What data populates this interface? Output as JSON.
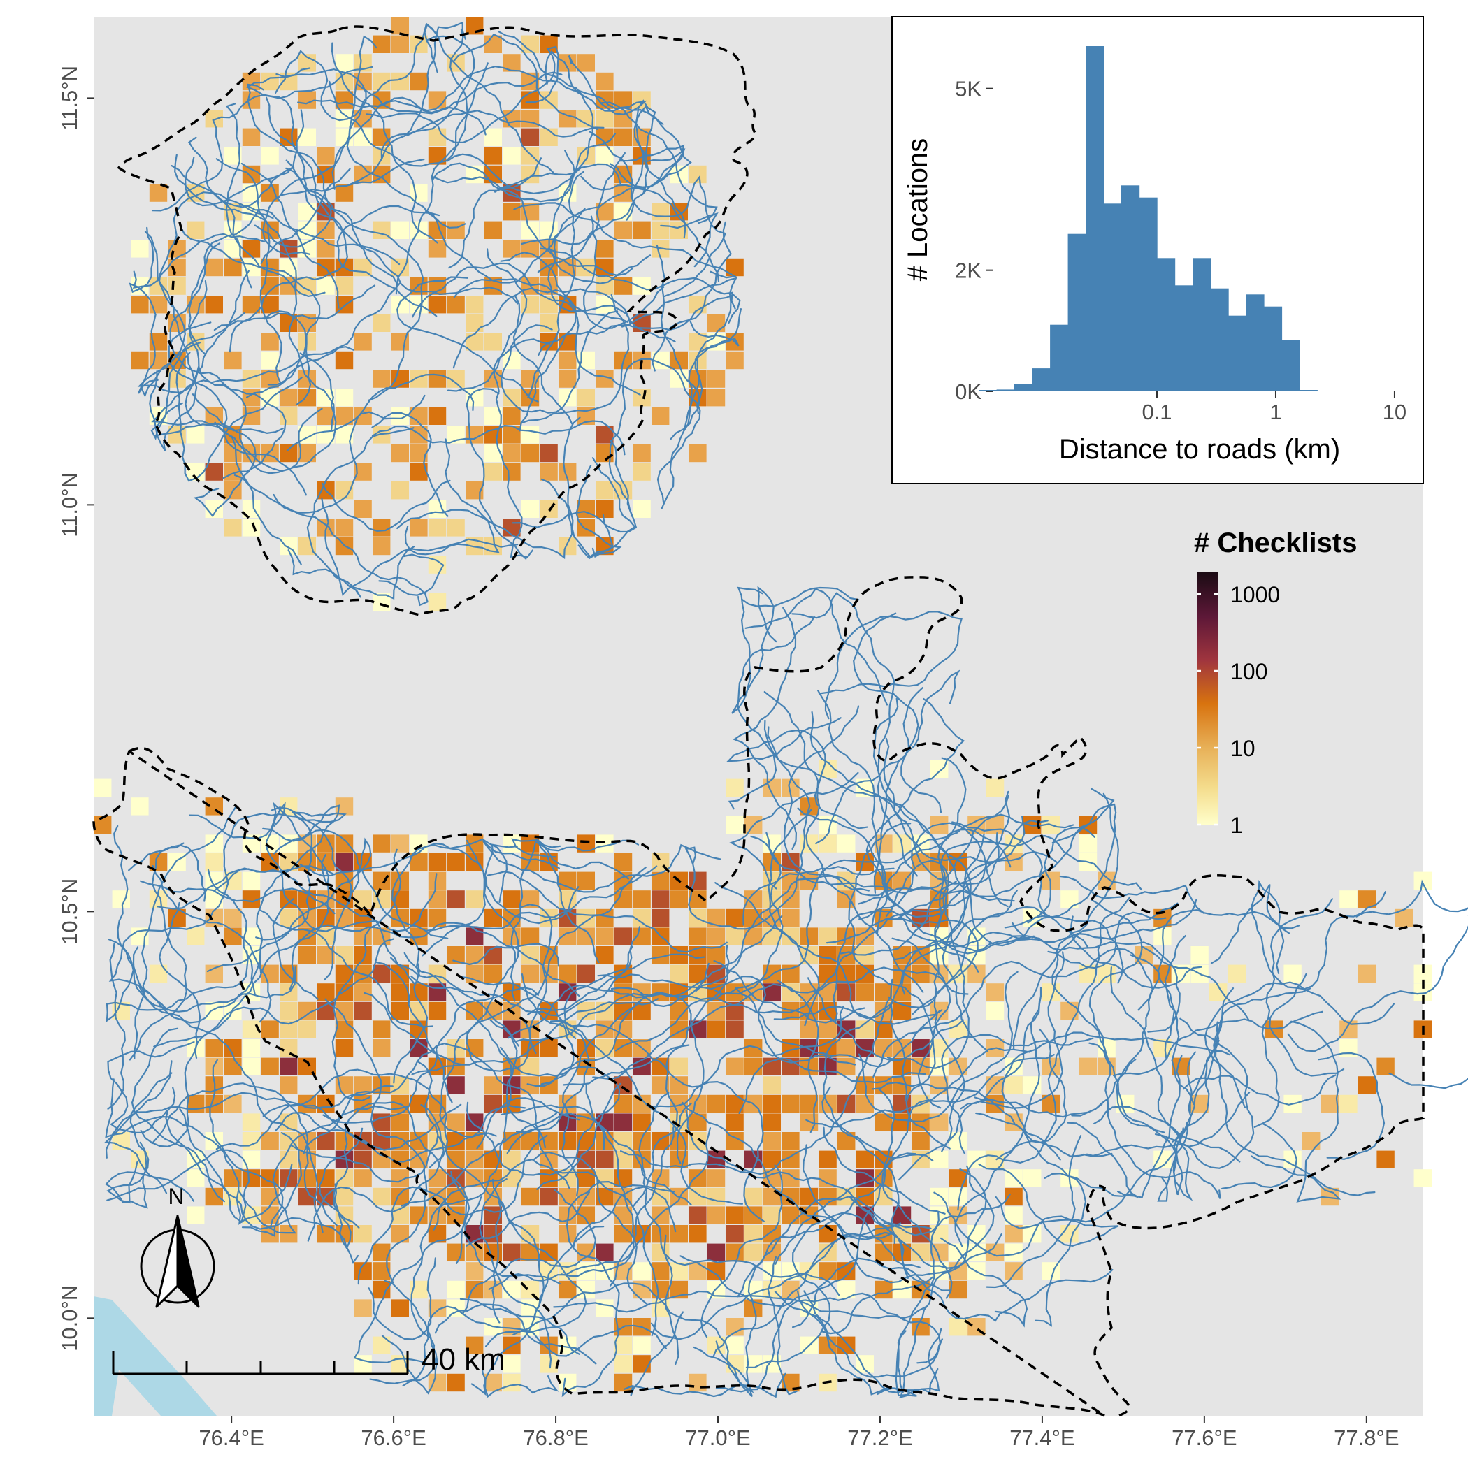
{
  "map": {
    "lat_labels": [
      {
        "value": 11.5,
        "label": "11.5°N"
      },
      {
        "value": 11.0,
        "label": "11.0°N"
      },
      {
        "value": 10.5,
        "label": "10.5°N"
      },
      {
        "value": 10.0,
        "label": "10.0°N"
      }
    ],
    "lon_labels": [
      {
        "value": 76.4,
        "label": "76.4°E"
      },
      {
        "value": 76.6,
        "label": "76.6°E"
      },
      {
        "value": 76.8,
        "label": "76.8°E"
      },
      {
        "value": 77.0,
        "label": "77.0°E"
      },
      {
        "value": 77.2,
        "label": "77.2°E"
      },
      {
        "value": 77.4,
        "label": "77.4°E"
      },
      {
        "value": 77.6,
        "label": "77.6°E"
      },
      {
        "value": 77.8,
        "label": "77.8°E"
      }
    ],
    "lon_range": [
      76.23,
      77.87
    ],
    "lat_range": [
      9.88,
      11.6
    ],
    "background_color": "#e5e5e5",
    "road_color": "#4682b4",
    "water_color": "#add8e6",
    "boundary_style": "black dashed"
  },
  "legend": {
    "title": "# Checklists",
    "labels": [
      "1000",
      "100",
      "10",
      "1"
    ],
    "colors": [
      "#1a0b13",
      "#6e1a3a",
      "#a33a3a",
      "#d8730f",
      "#e8b25a",
      "#f4dc8c",
      "#ffffcc"
    ],
    "scale": "log10"
  },
  "scale_bar": {
    "label": "40 km"
  },
  "north_arrow": {
    "label": "N"
  },
  "chart_data": {
    "type": "bar",
    "title": "",
    "xlabel": "Distance to roads (km)",
    "ylabel": "# Locations",
    "x_scale": "log10",
    "x_tick_labels": [
      "0.1",
      "1",
      "10"
    ],
    "y_tick_labels": [
      "0K",
      "2K",
      "5K"
    ],
    "ylim": [
      0,
      6000
    ],
    "fill_color": "#4682b4",
    "bins_low_km": [
      0.00316,
      0.00447,
      0.00631,
      0.00891,
      0.0126,
      0.0178,
      0.0251,
      0.0355,
      0.0501,
      0.0708,
      0.1,
      0.141,
      0.2,
      0.282,
      0.398,
      0.562,
      0.794,
      1.12,
      1.58,
      2.24,
      3.16,
      4.47,
      6.31,
      8.91
    ],
    "values": [
      5,
      30,
      120,
      380,
      1100,
      2600,
      5700,
      3100,
      3400,
      3200,
      2200,
      1750,
      2200,
      1700,
      1250,
      1600,
      1400,
      850,
      20,
      0,
      0,
      0,
      0,
      0
    ]
  }
}
